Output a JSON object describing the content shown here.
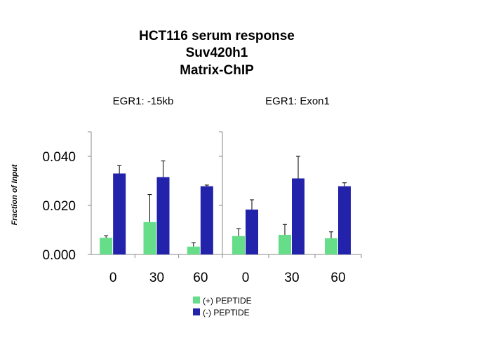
{
  "chart_data": {
    "type": "bar",
    "title_lines": [
      "HCT116 serum response",
      "Suv420h1",
      "Matrix-ChIP"
    ],
    "ylabel": "Fraction of Input",
    "ylim": [
      0,
      0.05
    ],
    "yticks": [
      "0.000",
      "0.020",
      "0.040"
    ],
    "ytick_values": [
      0,
      0.02,
      0.04
    ],
    "legend_position": "bottom-center",
    "colors": {
      "plus": "#66dd88",
      "minus": "#2222aa"
    },
    "panels": [
      {
        "title": "EGR1: -15kb",
        "categories": [
          "0",
          "30",
          "60"
        ],
        "series": [
          {
            "name": "(+) PEPTIDE",
            "values": [
              0.0068,
              0.0132,
              0.0032
            ],
            "errors": [
              0.0008,
              0.0112,
              0.0016
            ]
          },
          {
            "name": "(-) PEPTIDE",
            "values": [
              0.033,
              0.0315,
              0.0278
            ],
            "errors": [
              0.0032,
              0.0066,
              0.0005
            ]
          }
        ]
      },
      {
        "title": "EGR1: Exon1",
        "categories": [
          "0",
          "30",
          "60"
        ],
        "series": [
          {
            "name": "(+) PEPTIDE",
            "values": [
              0.0075,
              0.008,
              0.0066
            ],
            "errors": [
              0.003,
              0.0042,
              0.0026
            ]
          },
          {
            "name": "(-) PEPTIDE",
            "values": [
              0.0183,
              0.031,
              0.0278
            ],
            "errors": [
              0.004,
              0.009,
              0.0014
            ]
          }
        ]
      }
    ]
  }
}
